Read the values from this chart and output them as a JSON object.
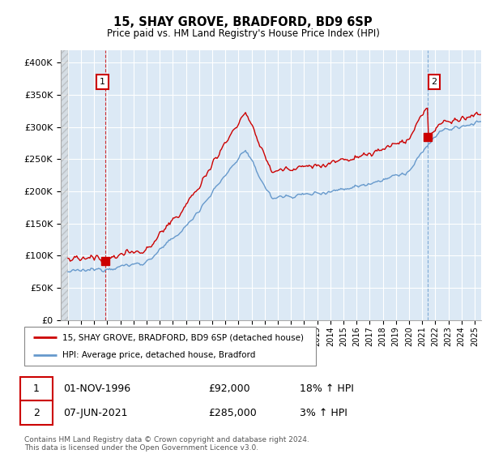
{
  "title": "15, SHAY GROVE, BRADFORD, BD9 6SP",
  "subtitle": "Price paid vs. HM Land Registry's House Price Index (HPI)",
  "hpi_label": "HPI: Average price, detached house, Bradford",
  "price_label": "15, SHAY GROVE, BRADFORD, BD9 6SP (detached house)",
  "annotation1": {
    "num": "1",
    "date": "01-NOV-1996",
    "price": "£92,000",
    "hpi": "18% ↑ HPI"
  },
  "annotation2": {
    "num": "2",
    "date": "07-JUN-2021",
    "price": "£285,000",
    "hpi": "3% ↑ HPI"
  },
  "footer": "Contains HM Land Registry data © Crown copyright and database right 2024.\nThis data is licensed under the Open Government Licence v3.0.",
  "ylim": [
    0,
    420000
  ],
  "yticks": [
    0,
    50000,
    100000,
    150000,
    200000,
    250000,
    300000,
    350000,
    400000
  ],
  "price_color": "#cc0000",
  "hpi_color": "#6699cc",
  "annotation_box_color": "#cc0000",
  "chart_bg_color": "#dce9f5",
  "hatch_color": "#bbbbbb",
  "grid_color": "#ffffff",
  "sale1_t": 1996.833,
  "sale1_price": 92000,
  "sale2_t": 2021.417,
  "sale2_price": 285000,
  "xstart": 1994,
  "xend": 2025.5
}
